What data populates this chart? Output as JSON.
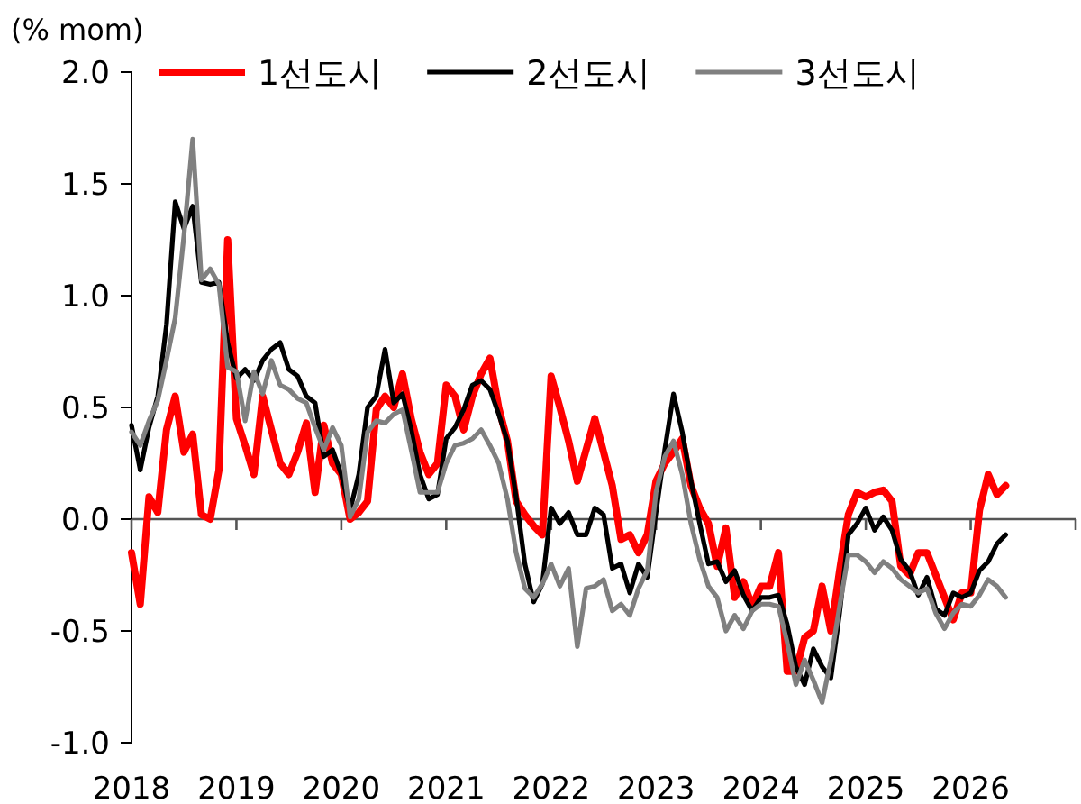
{
  "chart_data": {
    "type": "line",
    "ylabel": "(% mom)",
    "legend": "top",
    "x": [
      "2018-01",
      "2018-02",
      "2018-03",
      "2018-04",
      "2018-05",
      "2018-06",
      "2018-07",
      "2018-08",
      "2018-09",
      "2018-10",
      "2018-11",
      "2018-12",
      "2019-01",
      "2019-02",
      "2019-03",
      "2019-04",
      "2019-05",
      "2019-06",
      "2019-07",
      "2019-08",
      "2019-09",
      "2019-10",
      "2019-11",
      "2019-12",
      "2020-01",
      "2020-02",
      "2020-03",
      "2020-04",
      "2020-05",
      "2020-06",
      "2020-07",
      "2020-08",
      "2020-09",
      "2020-10",
      "2020-11",
      "2020-12",
      "2021-01",
      "2021-02",
      "2021-03",
      "2021-04",
      "2021-05",
      "2021-06",
      "2021-07",
      "2021-08",
      "2021-09",
      "2021-10",
      "2021-11",
      "2021-12",
      "2022-01",
      "2022-02",
      "2022-03",
      "2022-04",
      "2022-05",
      "2022-06",
      "2022-07",
      "2022-08",
      "2022-09",
      "2022-10",
      "2022-11",
      "2022-12",
      "2023-01",
      "2023-02",
      "2023-03",
      "2023-04",
      "2023-05",
      "2023-06",
      "2023-07",
      "2023-08",
      "2023-09",
      "2023-10",
      "2023-11",
      "2023-12",
      "2024-01",
      "2024-02",
      "2024-03",
      "2024-04",
      "2024-05",
      "2024-06",
      "2024-07",
      "2024-08",
      "2024-09",
      "2024-10",
      "2024-11",
      "2024-12",
      "2025-01",
      "2025-02",
      "2025-03",
      "2025-04",
      "2025-05",
      "2025-06",
      "2025-07",
      "2025-08",
      "2025-09",
      "2025-10",
      "2025-11",
      "2025-12",
      "2026-01",
      "2026-02",
      "2026-03",
      "2026-04",
      "2026-05"
    ],
    "xlim": [
      "2018-01",
      "2027-01"
    ],
    "xticks": [
      {
        "value": "2018-01",
        "label": "2018"
      },
      {
        "value": "2019-01",
        "label": "2019"
      },
      {
        "value": "2020-01",
        "label": "2020"
      },
      {
        "value": "2021-01",
        "label": "2021"
      },
      {
        "value": "2022-01",
        "label": "2022"
      },
      {
        "value": "2023-01",
        "label": "2023"
      },
      {
        "value": "2024-01",
        "label": "2024"
      },
      {
        "value": "2025-01",
        "label": "2025"
      },
      {
        "value": "2026-01",
        "label": "2026"
      },
      {
        "value": "2027-01",
        "label": null
      }
    ],
    "ylim": [
      -1.0,
      2.0
    ],
    "yticks": [
      {
        "value": -1,
        "label": "-1.0"
      },
      {
        "value": -0.5,
        "label": "-0.5"
      },
      {
        "value": 0,
        "label": "0.0"
      },
      {
        "value": 0.5,
        "label": "0.5"
      },
      {
        "value": 1,
        "label": "1.0"
      },
      {
        "value": 1.5,
        "label": "1.5"
      },
      {
        "value": 2,
        "label": "2.0"
      }
    ],
    "series": [
      {
        "name": "1선도시",
        "color": "#ff0000",
        "values": [
          -0.15,
          -0.38,
          0.1,
          0.03,
          0.4,
          0.55,
          0.3,
          0.38,
          0.02,
          0.0,
          0.22,
          1.25,
          0.45,
          0.33,
          0.2,
          0.55,
          0.4,
          0.25,
          0.2,
          0.3,
          0.43,
          0.12,
          0.42,
          0.25,
          0.2,
          0.0,
          0.03,
          0.08,
          0.49,
          0.55,
          0.5,
          0.65,
          0.45,
          0.3,
          0.2,
          0.25,
          0.6,
          0.55,
          0.4,
          0.55,
          0.65,
          0.72,
          0.5,
          0.35,
          0.08,
          0.02,
          -0.03,
          -0.07,
          0.64,
          0.5,
          0.35,
          0.17,
          0.31,
          0.45,
          0.3,
          0.15,
          -0.09,
          -0.07,
          -0.15,
          -0.07,
          0.17,
          0.25,
          0.3,
          0.36,
          0.15,
          0.05,
          -0.02,
          -0.21,
          -0.04,
          -0.35,
          -0.28,
          -0.39,
          -0.3,
          -0.3,
          -0.15,
          -0.68,
          -0.68,
          -0.53,
          -0.5,
          -0.3,
          -0.5,
          -0.23,
          0.02,
          0.12,
          0.1,
          0.12,
          0.13,
          0.08,
          -0.21,
          -0.25,
          -0.15,
          -0.15,
          -0.25,
          -0.35,
          -0.45,
          -0.33,
          -0.33,
          0.04,
          0.2,
          0.11,
          0.15
        ]
      },
      {
        "name": "2선도시",
        "color": "#000000",
        "values": [
          0.42,
          0.22,
          0.41,
          0.55,
          0.87,
          1.42,
          1.3,
          1.4,
          1.06,
          1.05,
          1.06,
          0.79,
          0.63,
          0.67,
          0.62,
          0.71,
          0.76,
          0.79,
          0.67,
          0.64,
          0.55,
          0.52,
          0.28,
          0.31,
          0.2,
          0.04,
          0.2,
          0.5,
          0.55,
          0.76,
          0.52,
          0.56,
          0.4,
          0.2,
          0.09,
          0.11,
          0.36,
          0.41,
          0.49,
          0.6,
          0.62,
          0.58,
          0.47,
          0.35,
          0.1,
          -0.2,
          -0.37,
          -0.29,
          0.05,
          -0.02,
          0.03,
          -0.07,
          -0.07,
          0.05,
          0.02,
          -0.22,
          -0.2,
          -0.33,
          -0.2,
          -0.26,
          0.03,
          0.31,
          0.56,
          0.39,
          0.17,
          -0.02,
          -0.2,
          -0.19,
          -0.28,
          -0.23,
          -0.34,
          -0.41,
          -0.35,
          -0.35,
          -0.34,
          -0.47,
          -0.66,
          -0.74,
          -0.58,
          -0.66,
          -0.71,
          -0.42,
          -0.07,
          -0.02,
          0.05,
          -0.05,
          0.01,
          -0.05,
          -0.18,
          -0.23,
          -0.34,
          -0.26,
          -0.4,
          -0.43,
          -0.33,
          -0.35,
          -0.33,
          -0.23,
          -0.19,
          -0.11,
          -0.07
        ]
      },
      {
        "name": "3선도시",
        "color": "#808080",
        "values": [
          0.39,
          0.33,
          0.44,
          0.53,
          0.71,
          0.9,
          1.27,
          1.7,
          1.07,
          1.12,
          1.05,
          0.68,
          0.66,
          0.44,
          0.66,
          0.56,
          0.71,
          0.6,
          0.58,
          0.54,
          0.52,
          0.41,
          0.31,
          0.41,
          0.33,
          0.01,
          0.09,
          0.39,
          0.44,
          0.43,
          0.47,
          0.49,
          0.31,
          0.12,
          0.12,
          0.12,
          0.25,
          0.33,
          0.34,
          0.36,
          0.4,
          0.33,
          0.25,
          0.09,
          -0.15,
          -0.31,
          -0.35,
          -0.29,
          -0.2,
          -0.3,
          -0.22,
          -0.57,
          -0.31,
          -0.3,
          -0.27,
          -0.41,
          -0.38,
          -0.43,
          -0.31,
          -0.23,
          0.12,
          0.28,
          0.35,
          0.2,
          -0.02,
          -0.18,
          -0.3,
          -0.35,
          -0.5,
          -0.43,
          -0.49,
          -0.41,
          -0.38,
          -0.38,
          -0.39,
          -0.55,
          -0.74,
          -0.63,
          -0.72,
          -0.82,
          -0.63,
          -0.39,
          -0.16,
          -0.16,
          -0.19,
          -0.24,
          -0.19,
          -0.22,
          -0.27,
          -0.3,
          -0.33,
          -0.31,
          -0.42,
          -0.49,
          -0.42,
          -0.38,
          -0.39,
          -0.34,
          -0.27,
          -0.3,
          -0.35
        ]
      }
    ]
  }
}
